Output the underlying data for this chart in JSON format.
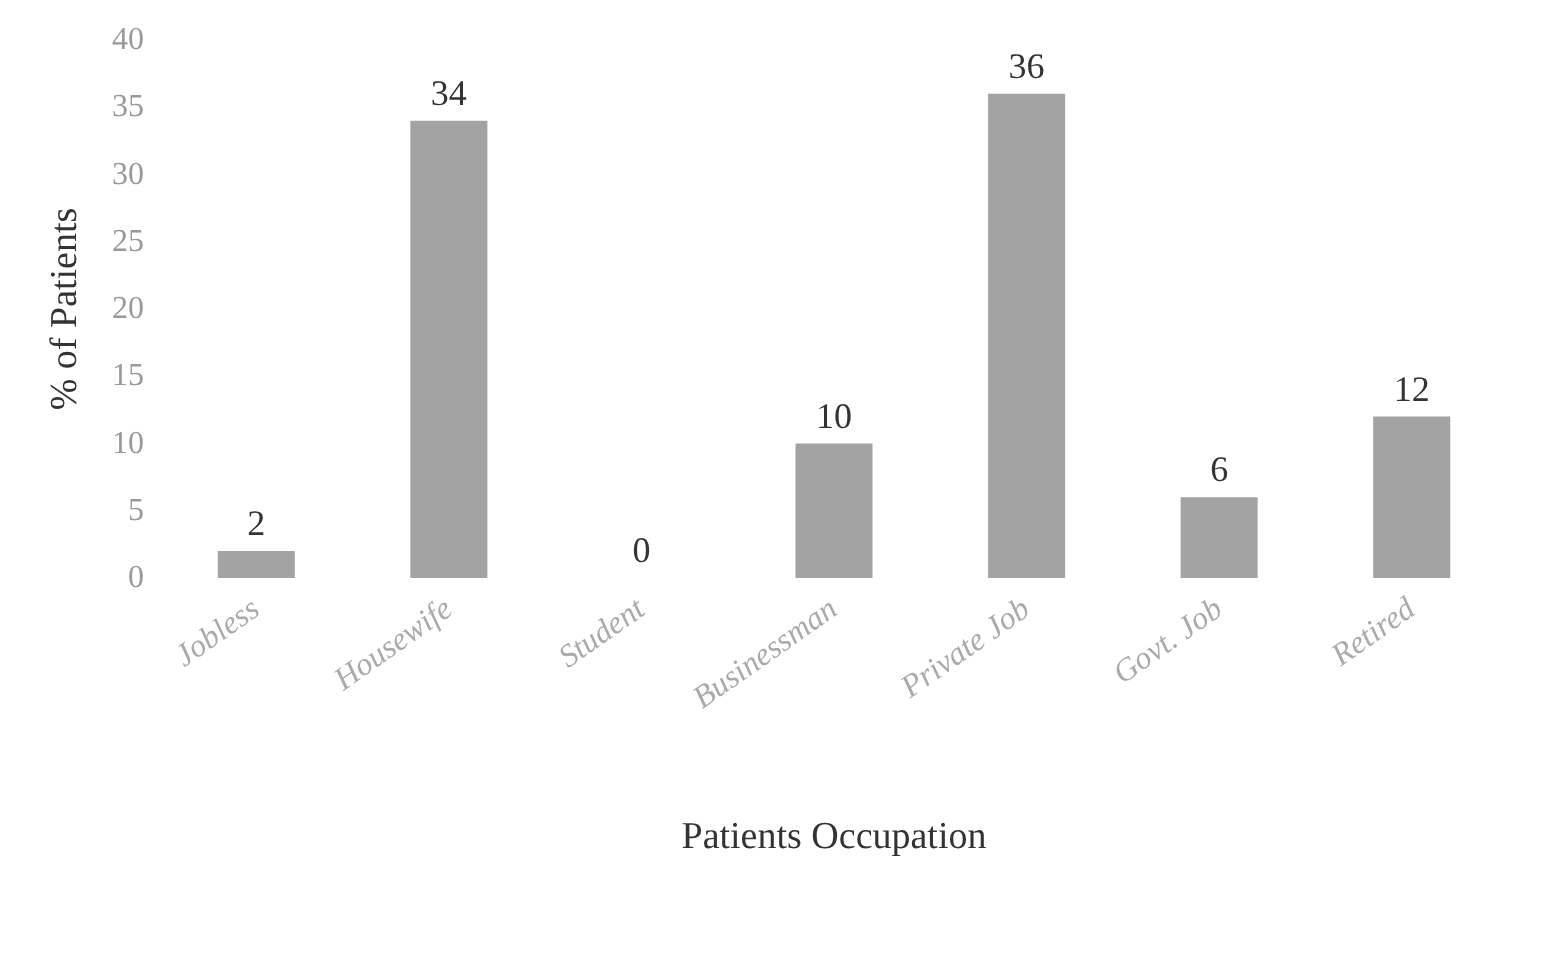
{
  "chart_data": {
    "type": "bar",
    "xlabel": "Patients Occupation",
    "ylabel": "% of Patients",
    "categories": [
      "Jobless",
      "Housewife",
      "Student",
      "Businessman",
      "Private Job",
      "Govt. Job",
      "Retired"
    ],
    "values": [
      2,
      34,
      0,
      10,
      36,
      6,
      12
    ],
    "color": "#a3a3a3",
    "data_labels": true,
    "ylim": [
      0,
      40
    ],
    "yticks": [
      0,
      5,
      10,
      15,
      20,
      25,
      30,
      35,
      40
    ],
    "grid": false
  }
}
